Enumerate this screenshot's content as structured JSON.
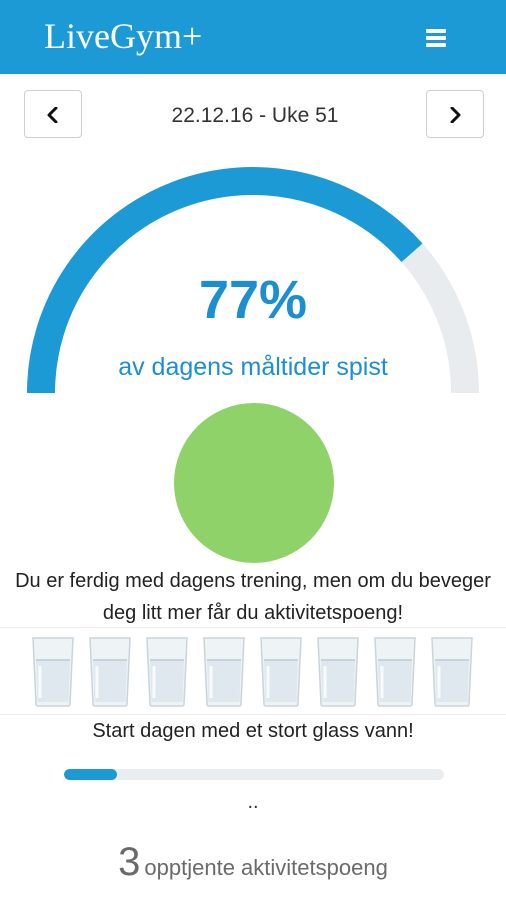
{
  "header": {
    "logo": "LiveGym+",
    "brand_color": "#1b9ad6"
  },
  "date_nav": {
    "label": "22.12.16 - Uke 51",
    "prev_icon": "chevron-left-icon",
    "next_icon": "chevron-right-icon"
  },
  "meals": {
    "percent_text": "77%",
    "percent": 77,
    "label": "av dagens måltider spist",
    "accent_color": "#1b9ad6",
    "track_color": "#e9ecee"
  },
  "training": {
    "status_color": "#8fd26a",
    "message": "Du er ferdig med dagens trening, men om du beveger deg litt mer får du aktivitetspoeng!"
  },
  "water": {
    "glasses_total": 8,
    "glass_icon": "water-glass-icon",
    "message": "Start dagen med et stort glass vann!",
    "progress_fraction": 0.14,
    "dots": ".."
  },
  "activity_points": {
    "count": "3",
    "label": "opptjente aktivitetspoeng"
  }
}
